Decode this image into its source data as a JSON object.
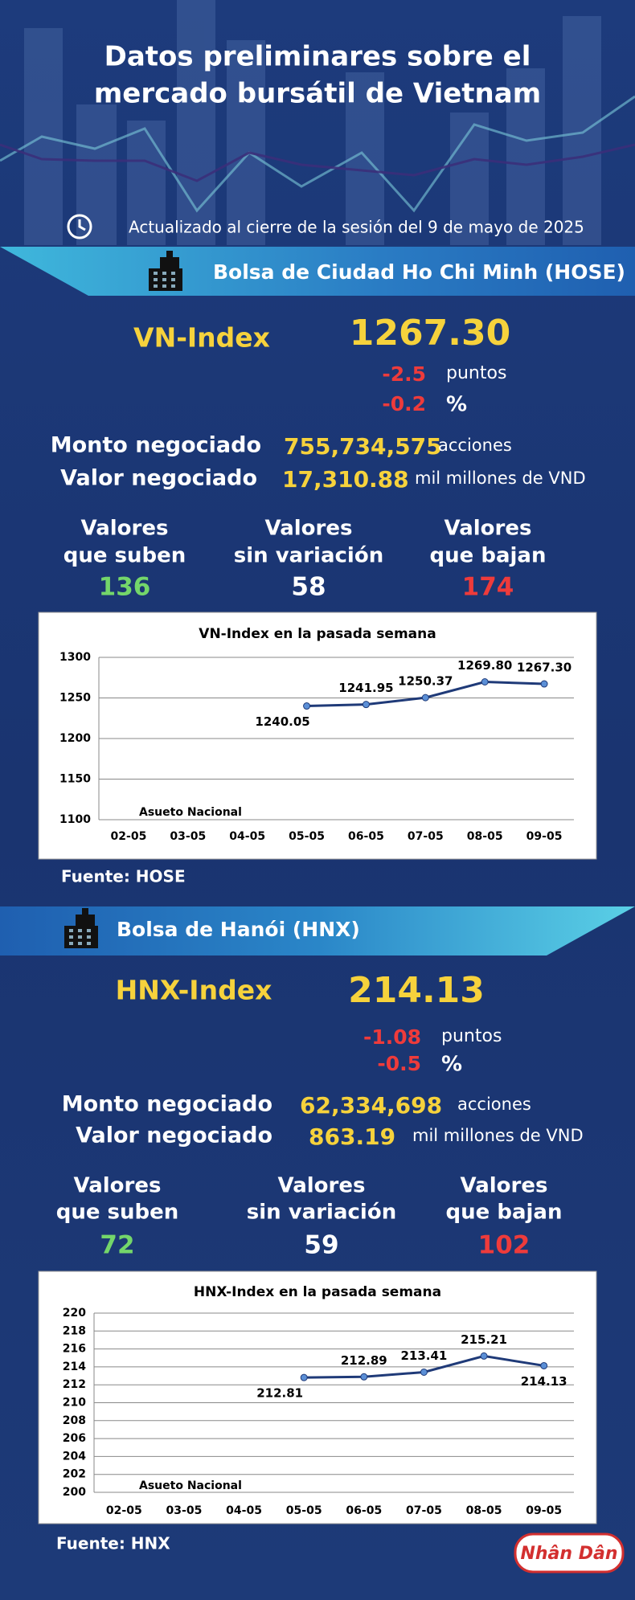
{
  "header": {
    "title_1": "Datos preliminares sobre el",
    "title_2": "mercado bursátil de Vietnam",
    "updated": "Actualizado al cierre de la sesión del 9 de mayo de 2025"
  },
  "sections": [
    {
      "exchange": "Bolsa de Ciudad Ho Chi Minh (HOSE)",
      "index_name": "VN-Index",
      "index_value": "1267.30",
      "change_points": "-2.5",
      "points_unit": "puntos",
      "change_percent": "-0.2",
      "percent_unit": "%",
      "volume_label": "Monto negociado",
      "volume": "755,734,575",
      "volume_unit": "acciones",
      "value_label": "Valor negociado",
      "value": "17,310.88",
      "value_unit": "mil millones de VND",
      "counts": [
        {
          "label_1": "Valores",
          "label_2": "que suben",
          "value": "136"
        },
        {
          "label_1": "Valores",
          "label_2": "sin variación",
          "value": "58"
        },
        {
          "label_1": "Valores",
          "label_2": "que bajan",
          "value": "174"
        }
      ],
      "source": "Fuente: HOSE"
    },
    {
      "exchange": "Bolsa de Hanói (HNX)",
      "index_name": "HNX-Index",
      "index_value": "214.13",
      "change_points": "-1.08",
      "points_unit": "puntos",
      "change_percent": "-0.5",
      "percent_unit": "%",
      "volume_label": "Monto negociado",
      "volume": "62,334,698",
      "volume_unit": "acciones",
      "value_label": "Valor negociado",
      "value": "863.19",
      "value_unit": "mil millones de VND",
      "counts": [
        {
          "label_1": "Valores",
          "label_2": "que suben",
          "value": "72"
        },
        {
          "label_1": "Valores",
          "label_2": "sin variación",
          "value": "59"
        },
        {
          "label_1": "Valores",
          "label_2": "que bajan",
          "value": "102"
        }
      ],
      "source": "Fuente:  HNX"
    }
  ],
  "chart_data": [
    {
      "type": "line",
      "title": "VN-Index en la pasada semana",
      "categories": [
        "02-05",
        "03-05",
        "04-05",
        "05-05",
        "06-05",
        "07-05",
        "08-05",
        "09-05"
      ],
      "values": [
        null,
        null,
        null,
        1240.05,
        1241.95,
        1250.37,
        1269.8,
        1267.3
      ],
      "value_labels": [
        null,
        null,
        null,
        "1240.05",
        "1241.95",
        "1250.37",
        "1269.80",
        "1267.30"
      ],
      "color": "#1f3a78",
      "ylim": [
        1100,
        1300
      ],
      "yticks": [
        1100,
        1150,
        1200,
        1250,
        1300
      ],
      "grid": true,
      "annotation": "Asueto Nacional"
    },
    {
      "type": "line",
      "title": "HNX-Index en la pasada semana",
      "categories": [
        "02-05",
        "03-05",
        "04-05",
        "05-05",
        "06-05",
        "07-05",
        "08-05",
        "09-05"
      ],
      "values": [
        null,
        null,
        null,
        212.81,
        212.89,
        213.41,
        215.21,
        214.13
      ],
      "color": "#1f3a78",
      "ylim": [
        200,
        220
      ],
      "yticks": [
        200,
        202,
        204,
        206,
        208,
        210,
        212,
        214,
        216,
        218,
        220
      ],
      "grid": true,
      "annotation": "Asueto Nacional"
    }
  ],
  "logo": "Nhân Dân"
}
